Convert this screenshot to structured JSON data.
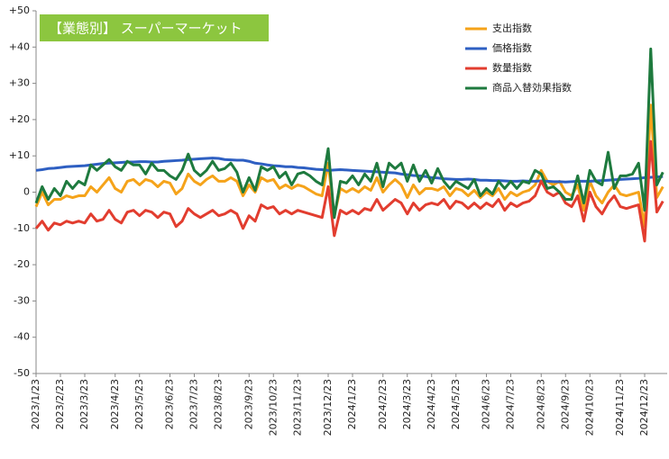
{
  "chart_data": {
    "type": "line",
    "title": "【業態別】 スーパーマーケット",
    "categories": [
      "2023/1/23",
      null,
      null,
      null,
      "2023/2/23",
      null,
      null,
      null,
      "2023/3/23",
      null,
      null,
      null,
      null,
      "2023/4/23",
      null,
      null,
      null,
      "2023/5/23",
      null,
      null,
      null,
      null,
      "2023/6/23",
      null,
      null,
      null,
      "2023/7/23",
      null,
      null,
      null,
      "2023/8/23",
      null,
      null,
      null,
      null,
      "2023/9/23",
      null,
      null,
      null,
      "2023/10/23",
      null,
      null,
      null,
      "2023/11/23",
      null,
      null,
      null,
      null,
      "2023/12/23",
      null,
      null,
      null,
      "2024/1/23",
      null,
      null,
      null,
      null,
      "2024/2/23",
      null,
      null,
      null,
      "2024/3/23",
      null,
      null,
      null,
      "2024/4/23",
      null,
      null,
      null,
      "2024/5/23",
      null,
      null,
      null,
      null,
      "2024/6/23",
      null,
      null,
      null,
      "2024/7/23",
      null,
      null,
      null,
      null,
      "2024/8/23",
      null,
      null,
      null,
      "2024/9/23",
      null,
      null,
      null,
      "2024/10/23",
      null,
      null,
      null,
      null,
      "2024/11/23",
      null,
      null,
      null,
      "2024/12/23",
      null,
      null,
      null
    ],
    "series": [
      {
        "name": "支出指数",
        "color": "#f5a31a",
        "values": [
          -4,
          0,
          -3.5,
          -2,
          -2,
          -1,
          -1.5,
          -1,
          -1,
          1.5,
          0,
          2,
          4,
          1,
          0,
          3,
          3.5,
          2,
          3.5,
          3,
          1.5,
          3,
          2.5,
          -0.5,
          1,
          5,
          3,
          2,
          3.5,
          4.5,
          3,
          3,
          4,
          3,
          -1,
          2,
          0,
          4,
          3,
          3.5,
          1,
          2,
          1,
          2,
          1.5,
          0.5,
          -0.5,
          -1,
          8,
          -6.5,
          1,
          0,
          1,
          0,
          1.5,
          0.5,
          4,
          0,
          2,
          3.5,
          2,
          -1.5,
          2,
          -0.5,
          1,
          1,
          0.5,
          1.5,
          -1,
          1,
          0.5,
          -1,
          0.5,
          -1.5,
          0,
          -1,
          1,
          -2,
          0,
          -1,
          0,
          0.5,
          2,
          6,
          3,
          2,
          3,
          0,
          -1,
          2,
          -5,
          3,
          -1,
          -3,
          0,
          2,
          -0.5,
          -1,
          -0.5,
          0,
          -9.5,
          24,
          -1.5,
          1.5
        ]
      },
      {
        "name": "価格指数",
        "color": "#2e5fc2",
        "values": [
          6,
          6.2,
          6.5,
          6.6,
          6.8,
          7,
          7.1,
          7.2,
          7.3,
          7.5,
          7.7,
          7.9,
          8,
          8.1,
          8.2,
          8.3,
          8.3,
          8.4,
          8.4,
          8.3,
          8.3,
          8.5,
          8.6,
          8.7,
          8.8,
          9,
          9.1,
          9.2,
          9.3,
          9.4,
          9.3,
          9,
          8.9,
          8.8,
          8.8,
          8.5,
          8,
          7.8,
          7.5,
          7.3,
          7.2,
          7,
          7,
          6.8,
          6.7,
          6.5,
          6.3,
          6.2,
          6,
          6.1,
          6.2,
          6.1,
          6,
          5.9,
          5.8,
          5.7,
          5.6,
          5.5,
          5.4,
          5.3,
          5,
          4.8,
          4.6,
          4.5,
          4.3,
          4,
          3.9,
          3.7,
          3.6,
          3.5,
          3.5,
          3.6,
          3.5,
          3.3,
          3.3,
          3.2,
          3.2,
          3.1,
          3,
          3,
          3.1,
          3,
          3,
          3.1,
          3,
          2.9,
          2.9,
          2.8,
          2.9,
          3,
          3,
          3,
          3.1,
          3.2,
          3.3,
          3.4,
          3.5,
          3.6,
          3.7,
          3.8,
          4,
          4.1,
          4.2,
          4.3
        ]
      },
      {
        "name": "数量指数",
        "color": "#e23d2f",
        "values": [
          -10,
          -8,
          -10.5,
          -8.5,
          -9,
          -8,
          -8.5,
          -8,
          -8.5,
          -6,
          -8,
          -7.5,
          -5,
          -7.5,
          -8.5,
          -5.5,
          -5,
          -6.5,
          -5,
          -5.5,
          -7,
          -5.5,
          -6,
          -9.5,
          -8,
          -4.5,
          -6,
          -7,
          -6,
          -5,
          -6.5,
          -6,
          -5,
          -6,
          -10,
          -6.5,
          -8,
          -3.5,
          -4.5,
          -4,
          -6,
          -5,
          -6,
          -5,
          -5.5,
          -6,
          -6.5,
          -7,
          1.5,
          -12,
          -5,
          -6,
          -5,
          -6,
          -4.5,
          -5,
          -2,
          -5,
          -3.5,
          -2,
          -3,
          -6,
          -3,
          -5,
          -3.5,
          -3,
          -3.5,
          -2,
          -4.5,
          -2.5,
          -3,
          -4.5,
          -3,
          -4.5,
          -3,
          -4,
          -2,
          -5,
          -3,
          -4,
          -3,
          -2.5,
          -1,
          3,
          0,
          -1,
          0,
          -3,
          -4,
          -1,
          -8,
          0,
          -4,
          -6,
          -3,
          -1,
          -4,
          -4.5,
          -4,
          -3.5,
          -13.5,
          14,
          -5.5,
          -2.5
        ]
      },
      {
        "name": "商品入替効果指数",
        "color": "#1e7a3e",
        "values": [
          -3,
          1.5,
          -2,
          1,
          -1,
          3,
          1,
          3,
          2,
          7.5,
          6,
          7.5,
          9,
          7,
          6,
          8.5,
          7.5,
          7.5,
          5,
          8,
          6,
          6,
          4.5,
          3.5,
          6,
          10.5,
          6,
          4.5,
          6,
          8.5,
          6,
          6.5,
          8,
          5.5,
          0,
          4,
          0.5,
          7,
          6,
          7,
          4,
          5.5,
          2,
          5,
          5.5,
          4.5,
          3,
          2,
          12,
          -7,
          3,
          2.5,
          4.5,
          2,
          5,
          3,
          8,
          1.5,
          8,
          6.5,
          8,
          3,
          7.5,
          3,
          6,
          2.5,
          6.5,
          3,
          1,
          3,
          2,
          1,
          3.5,
          -1,
          1,
          -0.5,
          3,
          1,
          3,
          1,
          3,
          2.5,
          6,
          5,
          1,
          1.5,
          0,
          -2,
          -2,
          4.5,
          -3,
          6,
          3,
          2,
          11,
          1,
          4.5,
          4.5,
          5,
          8,
          -5,
          39.5,
          2,
          5.5
        ]
      }
    ],
    "ylim": [
      -50,
      50
    ],
    "yticks": [
      {
        "value": 50,
        "label": "+50"
      },
      {
        "value": 40,
        "label": "+40"
      },
      {
        "value": 30,
        "label": "+30"
      },
      {
        "value": 20,
        "label": "+20"
      },
      {
        "value": 10,
        "label": "+10"
      },
      0,
      -10,
      -20,
      -30,
      -40,
      -50
    ]
  }
}
